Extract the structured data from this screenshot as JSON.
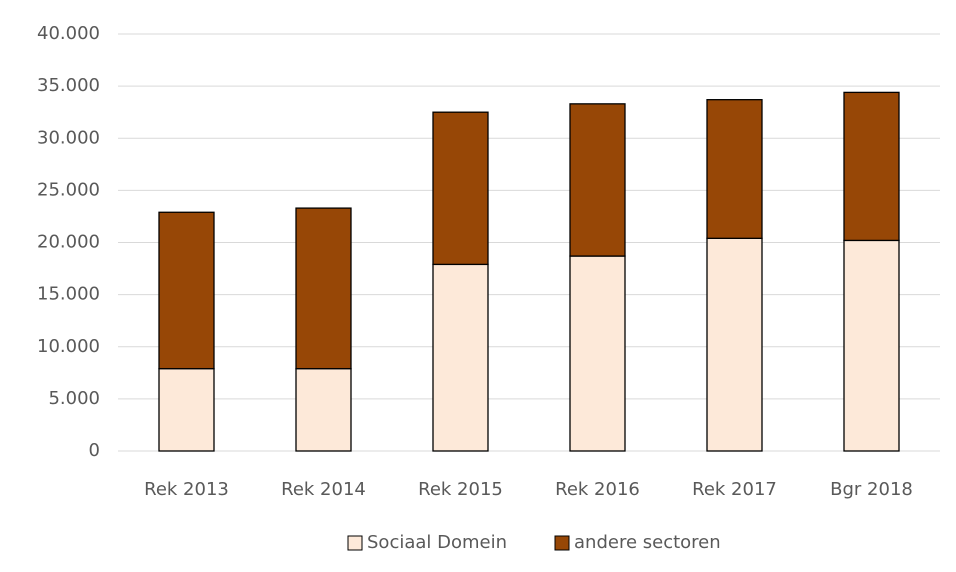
{
  "chart_data": {
    "type": "stacked_bar",
    "categories": [
      "Rek 2013",
      "Rek 2014",
      "Rek 2015",
      "Rek 2016",
      "Rek 2017",
      "Bgr 2018"
    ],
    "series": [
      {
        "name": "Sociaal Domein",
        "color": "#fde9d9",
        "values": [
          7900,
          7900,
          17900,
          18700,
          20400,
          20200
        ]
      },
      {
        "name": "andere sectoren",
        "color": "#974706",
        "values": [
          15000,
          15400,
          14600,
          14600,
          13300,
          14200
        ]
      }
    ],
    "ylim": [
      0,
      40000
    ],
    "yticks": [
      0,
      {
        "value": 5000,
        "label": "5.000"
      },
      {
        "value": 10000,
        "label": "10.000"
      },
      {
        "value": 15000,
        "label": "15.000"
      },
      {
        "value": 20000,
        "label": "20.000"
      },
      {
        "value": 25000,
        "label": "25.000"
      },
      {
        "value": 30000,
        "label": "30.000"
      },
      {
        "value": 35000,
        "label": "35.000"
      },
      {
        "value": 40000,
        "label": "40.000"
      }
    ],
    "grid": true,
    "legend": "bottom"
  }
}
